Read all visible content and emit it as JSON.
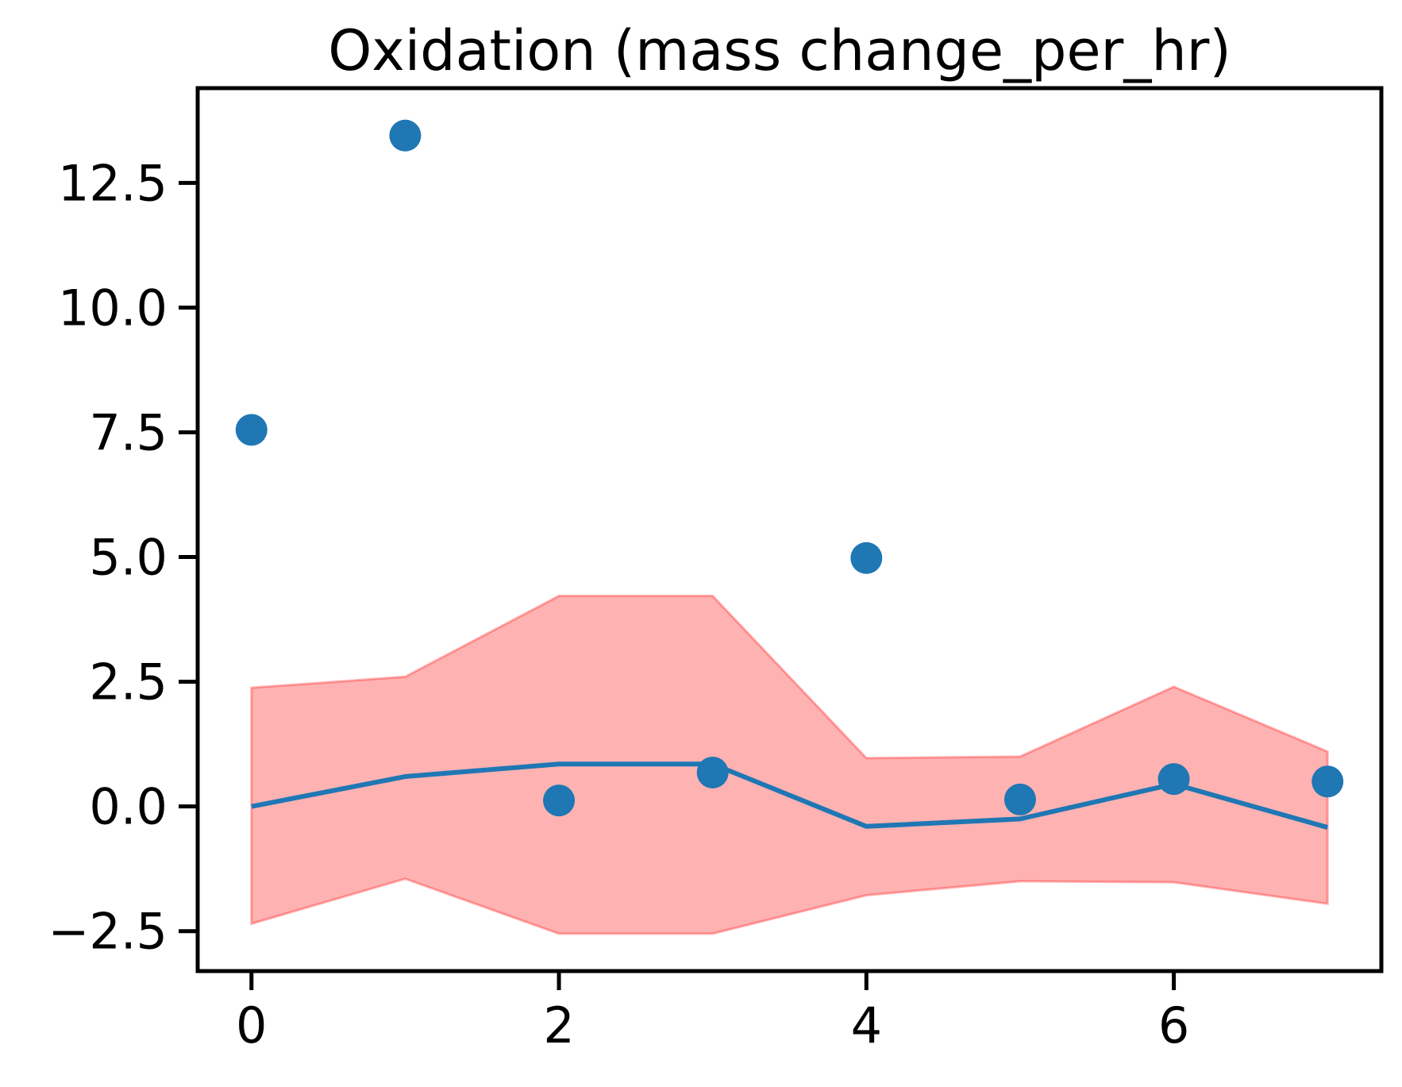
{
  "chart_data": {
    "type": "scatter",
    "title": "Oxidation (mass change_per_hr)",
    "xlabel": "",
    "ylabel": "",
    "xlim": [
      -0.35,
      7.35
    ],
    "ylim": [
      -3.3,
      14.4
    ],
    "x_ticks": [
      0,
      2,
      4,
      6
    ],
    "x_tick_labels": [
      "0",
      "2",
      "4",
      "6"
    ],
    "y_ticks": [
      -2.5,
      0.0,
      2.5,
      5.0,
      7.5,
      10.0,
      12.5
    ],
    "y_tick_labels": [
      "−2.5",
      "0.0",
      "2.5",
      "5.0",
      "7.5",
      "10.0",
      "12.5"
    ],
    "grid": false,
    "series": [
      {
        "kind": "scatter",
        "color": "#1f77b4",
        "x": [
          0,
          1,
          2,
          3,
          4,
          5,
          6,
          7
        ],
        "y": [
          7.55,
          13.45,
          0.12,
          0.68,
          4.98,
          0.14,
          0.55,
          0.5
        ]
      },
      {
        "kind": "line",
        "color": "#1f77b4",
        "x": [
          0,
          1,
          2,
          3,
          4,
          5,
          6,
          7
        ],
        "y": [
          0.0,
          0.6,
          0.85,
          0.85,
          -0.4,
          -0.25,
          0.45,
          -0.42
        ]
      },
      {
        "kind": "band",
        "color": "#ff0000",
        "x": [
          0,
          1,
          2,
          3,
          4,
          5,
          6,
          7
        ],
        "lower": [
          -2.35,
          -1.45,
          -2.55,
          -2.55,
          -1.78,
          -1.5,
          -1.52,
          -1.95
        ],
        "upper": [
          2.38,
          2.6,
          4.22,
          4.22,
          0.97,
          1.0,
          2.4,
          1.1
        ]
      }
    ]
  }
}
